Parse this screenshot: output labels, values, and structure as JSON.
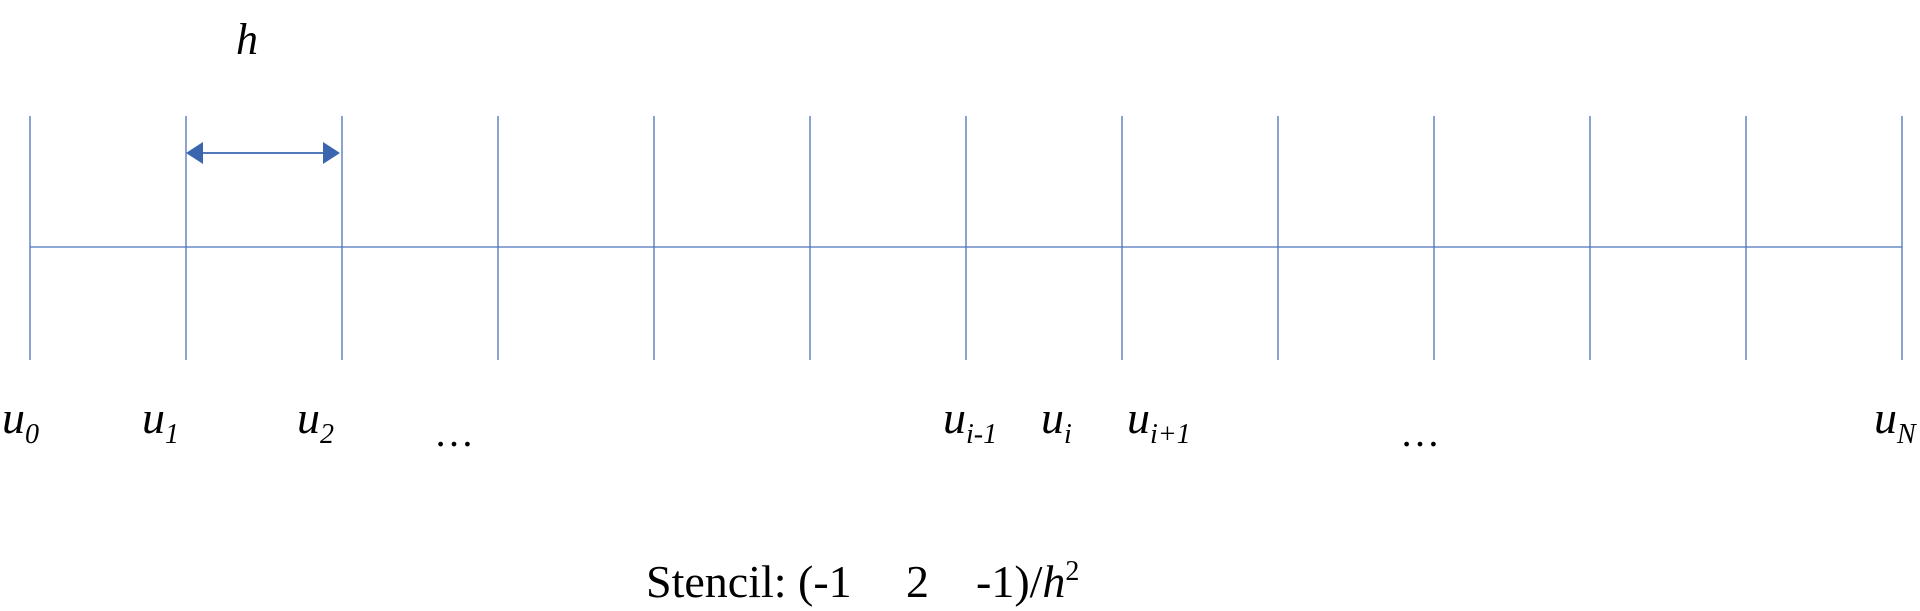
{
  "diagram": {
    "spacing_label": "h",
    "node_count": 13,
    "node_labels": [
      {
        "base": "u",
        "sub": "0"
      },
      {
        "base": "u",
        "sub": "1"
      },
      {
        "base": "u",
        "sub": "2"
      },
      {
        "base": "u",
        "sub": "i-1"
      },
      {
        "base": "u",
        "sub": "i"
      },
      {
        "base": "u",
        "sub": "i+1"
      },
      {
        "base": "u",
        "sub": "N"
      }
    ],
    "ellipses": [
      "…",
      "…"
    ],
    "stencil": {
      "prefix": "Stencil: (-1",
      "c2": "2",
      "c3": "-1)/",
      "h": "h",
      "exponent": "2"
    },
    "colors": {
      "lines": "#4a74bd",
      "arrow": "#3a66b0",
      "text": "#000000"
    }
  }
}
